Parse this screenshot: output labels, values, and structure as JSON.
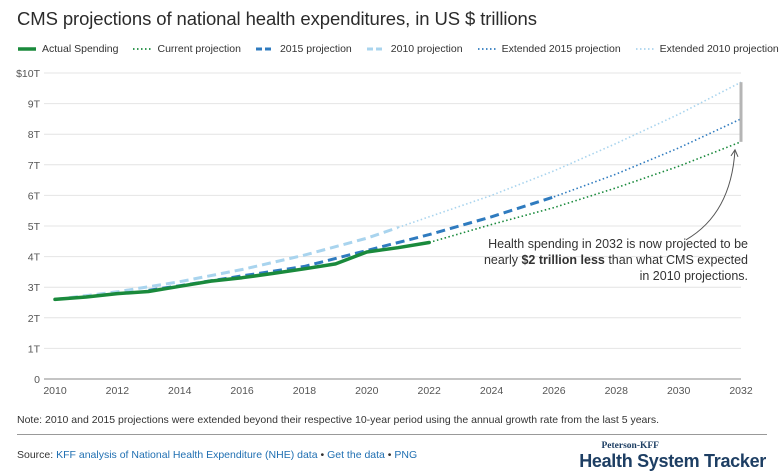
{
  "title": "CMS projections of national health expenditures, in US $ trillions",
  "legend": [
    {
      "label": "Actual Spending",
      "color": "#1a8a3c",
      "style": "solid"
    },
    {
      "label": "Current projection",
      "color": "#1a8a3c",
      "style": "dotted"
    },
    {
      "label": "2015 projection",
      "color": "#2f7bbf",
      "style": "dashed"
    },
    {
      "label": "2010 projection",
      "color": "#a9d4ee",
      "style": "dashed"
    },
    {
      "label": "Extended 2015 projection",
      "color": "#2f7bbf",
      "style": "dotted"
    },
    {
      "label": "Extended 2010 projection",
      "color": "#a9d4ee",
      "style": "dotted"
    }
  ],
  "annotation": {
    "line1": "Health spending in 2032 is now projected to be",
    "line2_prefix": "nearly ",
    "line2_bold": "$2 trillion less",
    "line2_suffix": " than what CMS expected",
    "line3": "in 2010 projections."
  },
  "note": "Note: 2010 and 2015 projections were extended beyond their respective 10-year period using the annual growth rate from the last 5 years.",
  "source": {
    "prefix": "Source: ",
    "link1": "KFF analysis of National Health Expenditure (NHE) data",
    "sep1": " • ",
    "link2": "Get the data",
    "sep2": " • ",
    "link3": "PNG"
  },
  "brand": {
    "top": "Peterson-KFF",
    "main": "Health System Tracker"
  },
  "chart_data": {
    "type": "line",
    "title": "CMS projections of national health expenditures, in US $ trillions",
    "xlabel": "",
    "ylabel": "",
    "xlim": [
      2010,
      2032
    ],
    "ylim": [
      0,
      10
    ],
    "x_ticks": [
      2010,
      2012,
      2014,
      2016,
      2018,
      2020,
      2022,
      2024,
      2026,
      2028,
      2030,
      2032
    ],
    "y_ticks": [
      0,
      1,
      2,
      3,
      4,
      5,
      6,
      7,
      8,
      9,
      10
    ],
    "y_tick_labels": [
      "0",
      "1T",
      "2T",
      "3T",
      "4T",
      "5T",
      "6T",
      "7T",
      "8T",
      "9T",
      "$10T"
    ],
    "grid": true,
    "legend_position": "top",
    "series": [
      {
        "name": "Actual Spending",
        "color": "#1a8a3c",
        "style": "solid",
        "x": [
          2010,
          2011,
          2012,
          2013,
          2014,
          2015,
          2016,
          2017,
          2018,
          2019,
          2020,
          2021,
          2022
        ],
        "y": [
          2.6,
          2.68,
          2.79,
          2.86,
          3.03,
          3.2,
          3.31,
          3.45,
          3.6,
          3.76,
          4.15,
          4.29,
          4.46
        ]
      },
      {
        "name": "Current projection",
        "color": "#1a8a3c",
        "style": "dotted",
        "x": [
          2022,
          2024,
          2026,
          2028,
          2030,
          2032
        ],
        "y": [
          4.46,
          5.05,
          5.6,
          6.25,
          6.95,
          7.75
        ]
      },
      {
        "name": "2015 projection",
        "color": "#2f7bbf",
        "style": "dashed",
        "x": [
          2013,
          2014,
          2016,
          2018,
          2020,
          2022,
          2024,
          2026
        ],
        "y": [
          2.9,
          3.05,
          3.37,
          3.68,
          4.2,
          4.72,
          5.3,
          5.95
        ]
      },
      {
        "name": "2010 projection",
        "color": "#a9d4ee",
        "style": "dashed",
        "x": [
          2010,
          2012,
          2014,
          2016,
          2018,
          2020,
          2021
        ],
        "y": [
          2.6,
          2.85,
          3.18,
          3.58,
          4.05,
          4.6,
          4.95
        ]
      },
      {
        "name": "Extended 2015 projection",
        "color": "#2f7bbf",
        "style": "dotted",
        "x": [
          2026,
          2028,
          2030,
          2032
        ],
        "y": [
          5.95,
          6.7,
          7.55,
          8.5
        ]
      },
      {
        "name": "Extended 2010 projection",
        "color": "#a9d4ee",
        "style": "dotted",
        "x": [
          2021,
          2022,
          2024,
          2026,
          2028,
          2030,
          2032
        ],
        "y": [
          4.95,
          5.3,
          6.0,
          6.8,
          7.7,
          8.65,
          9.7
        ]
      }
    ],
    "range_bar": {
      "x": 2032,
      "y_low": 7.75,
      "y_high": 9.7,
      "color": "#b5b5b5"
    }
  }
}
